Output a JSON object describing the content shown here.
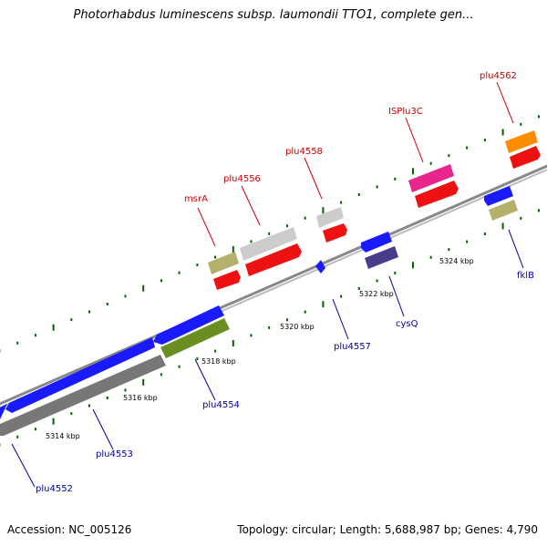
{
  "header": {
    "title": "Photorhabdus luminescens subsp. laumondii TTO1, complete gen..."
  },
  "footer": {
    "accession_label": "Accession:",
    "accession": "NC_005126",
    "topology_label": "Topology:",
    "topology": "circular",
    "length_label": "Length:",
    "length": "5,688,987 bp",
    "genes_label": "Genes:",
    "genes": "4,790"
  },
  "colors": {
    "backbone": "#999999",
    "tick": "#006400",
    "forward_label": "#cc0000",
    "reverse_label": "#000099",
    "ruler_text": "#000000"
  },
  "ruler": {
    "labels": [
      "5314 kbp",
      "5316 kbp",
      "5318 kbp",
      "5320 kbp",
      "5322 kbp",
      "5324 kbp"
    ]
  },
  "genes": {
    "forward": [
      {
        "label": "msrA",
        "color": "#b5b06c"
      },
      {
        "label": "plu4556",
        "color": "#cccccc"
      },
      {
        "label": "plu4558",
        "color": "#cccccc"
      },
      {
        "label": "ISPlu3C",
        "color": "#e8258c"
      },
      {
        "label": "plu4562",
        "color": "#ff8c00"
      }
    ],
    "reverse": [
      {
        "label": "plu4552",
        "color": "#1a1aff"
      },
      {
        "label": "plu4553",
        "color": "#1a1aff"
      },
      {
        "label": "plu4554",
        "color": "#6b8e23"
      },
      {
        "label": "plu4557",
        "color": "#1a1aff"
      },
      {
        "label": "cysQ",
        "color": "#483d8b"
      },
      {
        "label": "fklB",
        "color": "#1a1aff"
      }
    ]
  }
}
